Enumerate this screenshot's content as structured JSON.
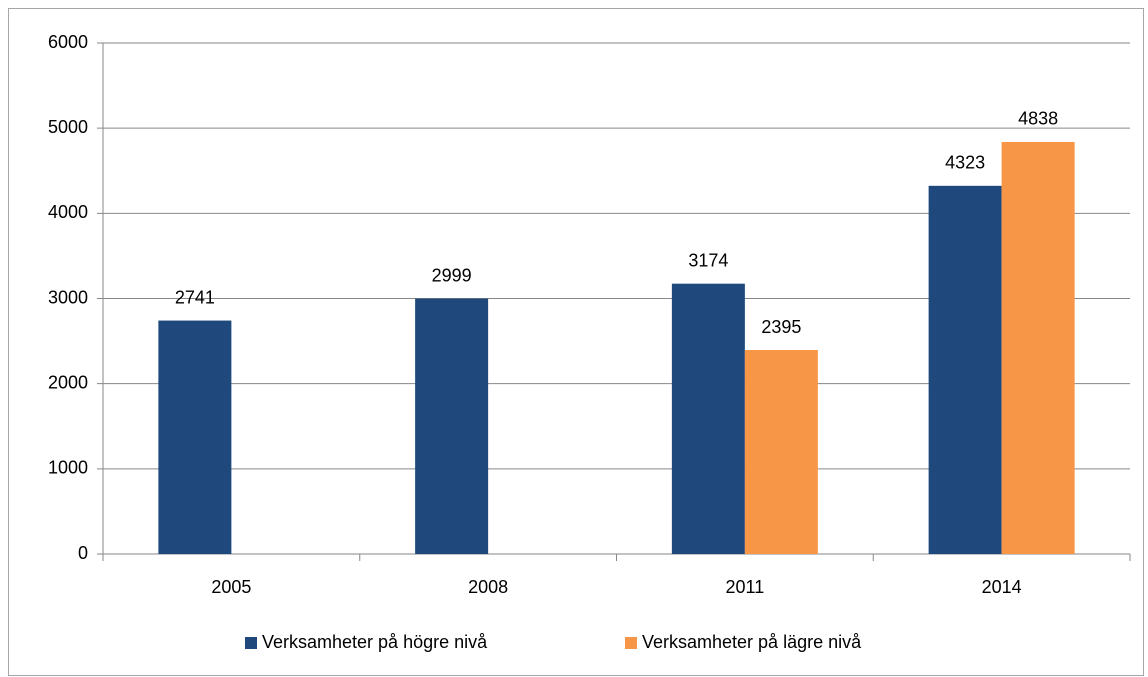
{
  "chart_data": {
    "type": "bar",
    "categories": [
      "2005",
      "2008",
      "2011",
      "2014"
    ],
    "series": [
      {
        "name": "Verksamheter på högre nivå",
        "color": "#1f497d",
        "values": [
          2741,
          2999,
          3174,
          4323
        ]
      },
      {
        "name": "Verksamheter på lägre nivå",
        "color": "#f79646",
        "values": [
          null,
          null,
          2395,
          4838
        ]
      }
    ],
    "ylim": [
      0,
      6000
    ],
    "yticks": [
      0,
      1000,
      2000,
      3000,
      4000,
      5000,
      6000
    ],
    "grid": true,
    "legend": "bottom"
  }
}
